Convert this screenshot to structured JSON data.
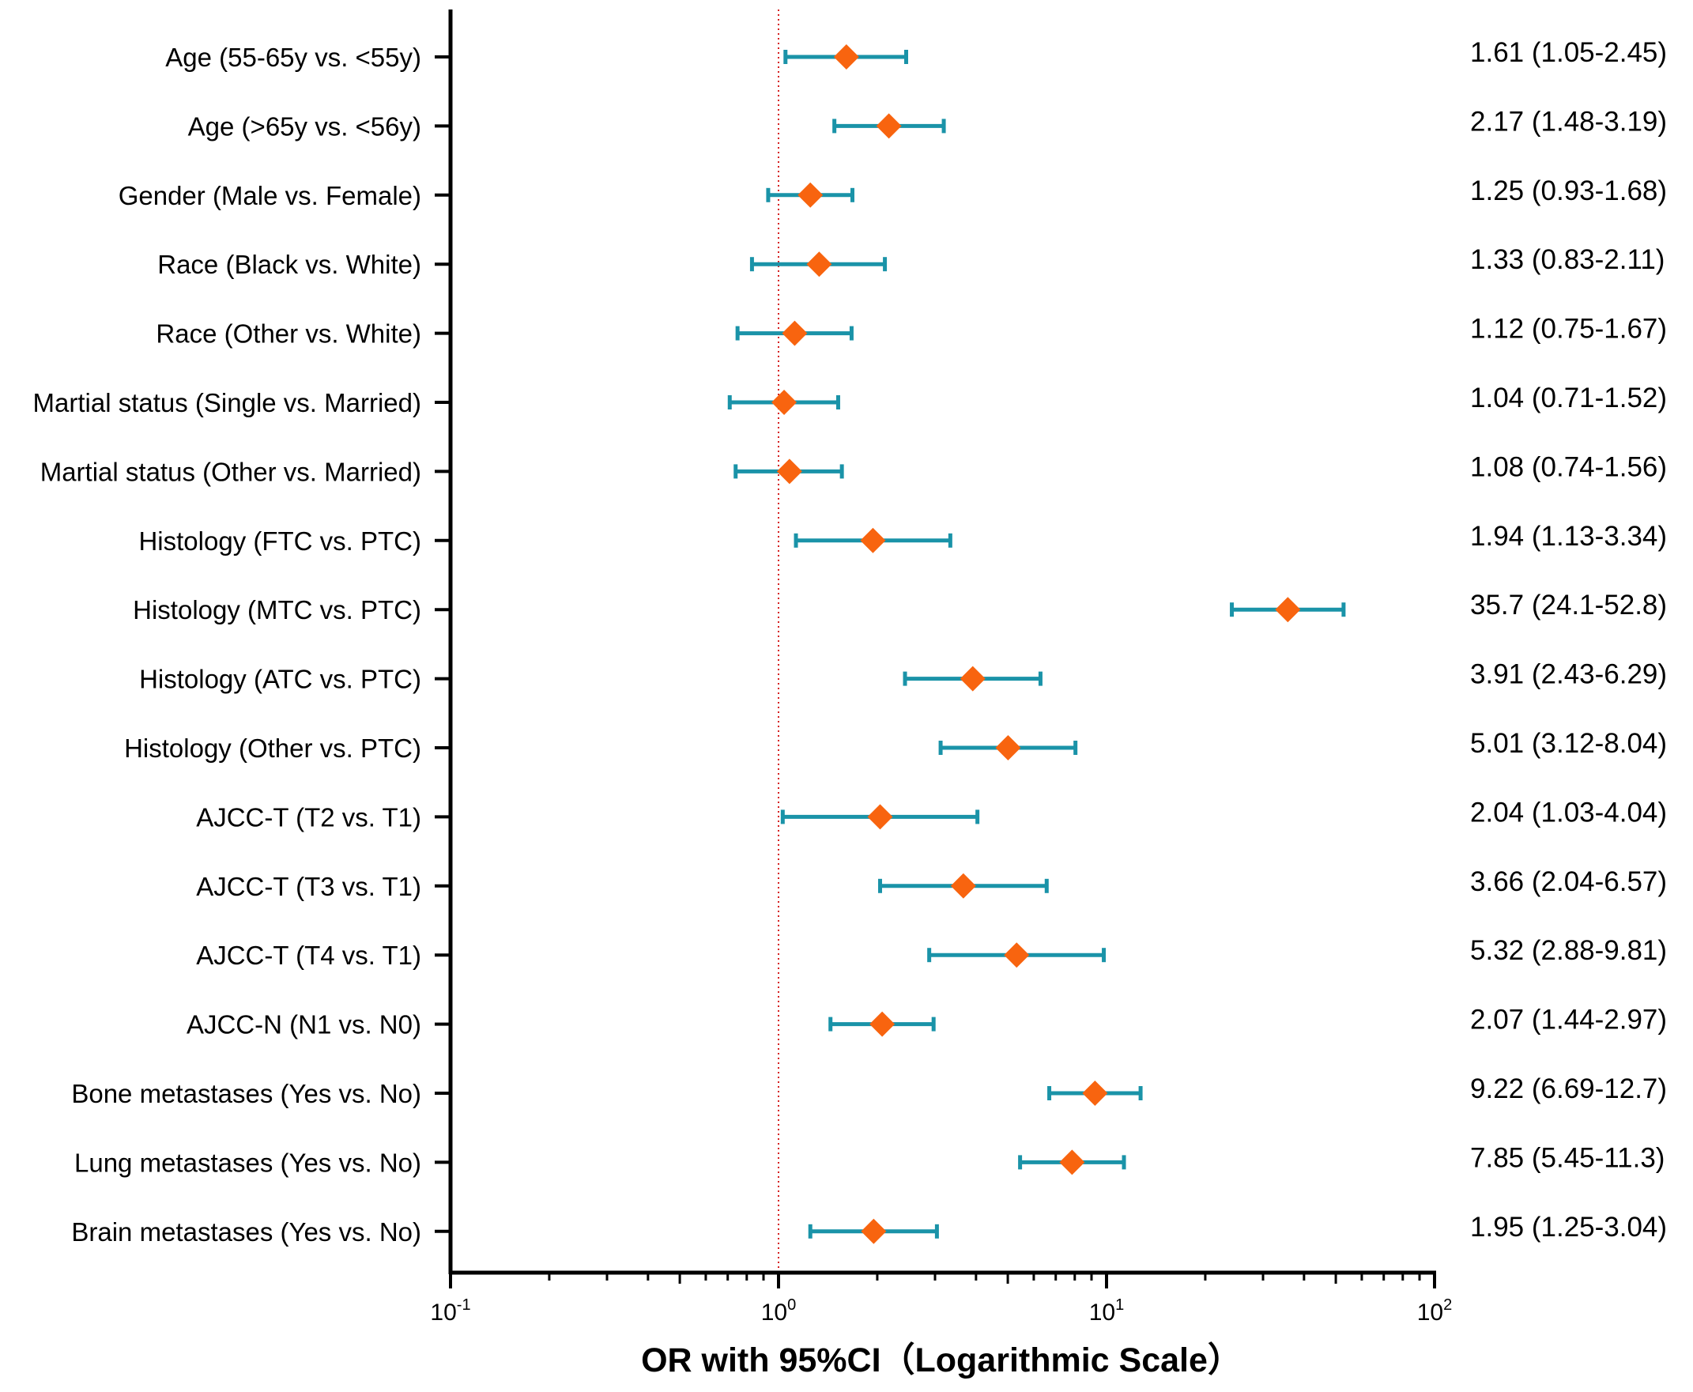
{
  "colors": {
    "ci_line": "#1a93a8",
    "point": "#f8640f",
    "reference_line": "#d62020",
    "axis": "#000000"
  },
  "chart_data": {
    "type": "forest",
    "title": "",
    "xlabel": "OR with 95%CI（Logarithmic Scale）",
    "x_scale": "log10",
    "xlim": [
      0.1,
      100
    ],
    "reference_value": 1,
    "x_ticks": [
      {
        "value": 0.1,
        "base": "10",
        "exp": "-1"
      },
      {
        "value": 1,
        "base": "10",
        "exp": "0"
      },
      {
        "value": 10,
        "base": "10",
        "exp": "1"
      },
      {
        "value": 100,
        "base": "10",
        "exp": "2"
      }
    ],
    "rows": [
      {
        "label": "Age (55-65y vs. <55y)",
        "or": 1.61,
        "lower": 1.05,
        "upper": 2.45,
        "text": "1.61 (1.05-2.45)"
      },
      {
        "label": "Age (>65y vs. <56y)",
        "or": 2.17,
        "lower": 1.48,
        "upper": 3.19,
        "text": "2.17 (1.48-3.19)"
      },
      {
        "label": "Gender (Male vs. Female)",
        "or": 1.25,
        "lower": 0.93,
        "upper": 1.68,
        "text": "1.25 (0.93-1.68)"
      },
      {
        "label": "Race (Black vs. White)",
        "or": 1.33,
        "lower": 0.83,
        "upper": 2.11,
        "text": "1.33 (0.83-2.11)"
      },
      {
        "label": "Race (Other vs. White)",
        "or": 1.12,
        "lower": 0.75,
        "upper": 1.67,
        "text": "1.12 (0.75-1.67)"
      },
      {
        "label": "Martial status (Single vs. Married)",
        "or": 1.04,
        "lower": 0.71,
        "upper": 1.52,
        "text": "1.04 (0.71-1.52)"
      },
      {
        "label": "Martial status (Other vs. Married)",
        "or": 1.08,
        "lower": 0.74,
        "upper": 1.56,
        "text": "1.08 (0.74-1.56)"
      },
      {
        "label": "Histology (FTC vs. PTC)",
        "or": 1.94,
        "lower": 1.13,
        "upper": 3.34,
        "text": "1.94 (1.13-3.34)"
      },
      {
        "label": "Histology (MTC vs. PTC)",
        "or": 35.7,
        "lower": 24.1,
        "upper": 52.8,
        "text": "35.7 (24.1-52.8)"
      },
      {
        "label": "Histology (ATC vs. PTC)",
        "or": 3.91,
        "lower": 2.43,
        "upper": 6.29,
        "text": "3.91 (2.43-6.29)"
      },
      {
        "label": "Histology (Other vs. PTC)",
        "or": 5.01,
        "lower": 3.12,
        "upper": 8.04,
        "text": "5.01 (3.12-8.04)"
      },
      {
        "label": "AJCC-T (T2 vs. T1)",
        "or": 2.04,
        "lower": 1.03,
        "upper": 4.04,
        "text": "2.04 (1.03-4.04)"
      },
      {
        "label": "AJCC-T (T3 vs. T1)",
        "or": 3.66,
        "lower": 2.04,
        "upper": 6.57,
        "text": "3.66 (2.04-6.57)"
      },
      {
        "label": "AJCC-T (T4 vs. T1)",
        "or": 5.32,
        "lower": 2.88,
        "upper": 9.81,
        "text": "5.32 (2.88-9.81)"
      },
      {
        "label": "AJCC-N (N1 vs. N0)",
        "or": 2.07,
        "lower": 1.44,
        "upper": 2.97,
        "text": "2.07 (1.44-2.97)"
      },
      {
        "label": "Bone metastases (Yes vs. No)",
        "or": 9.22,
        "lower": 6.69,
        "upper": 12.7,
        "text": "9.22 (6.69-12.7)"
      },
      {
        "label": "Lung metastases (Yes vs. No)",
        "or": 7.85,
        "lower": 5.45,
        "upper": 11.3,
        "text": "7.85 (5.45-11.3)"
      },
      {
        "label": "Brain metastases (Yes vs. No)",
        "or": 1.95,
        "lower": 1.25,
        "upper": 3.04,
        "text": "1.95 (1.25-3.04)"
      }
    ]
  }
}
